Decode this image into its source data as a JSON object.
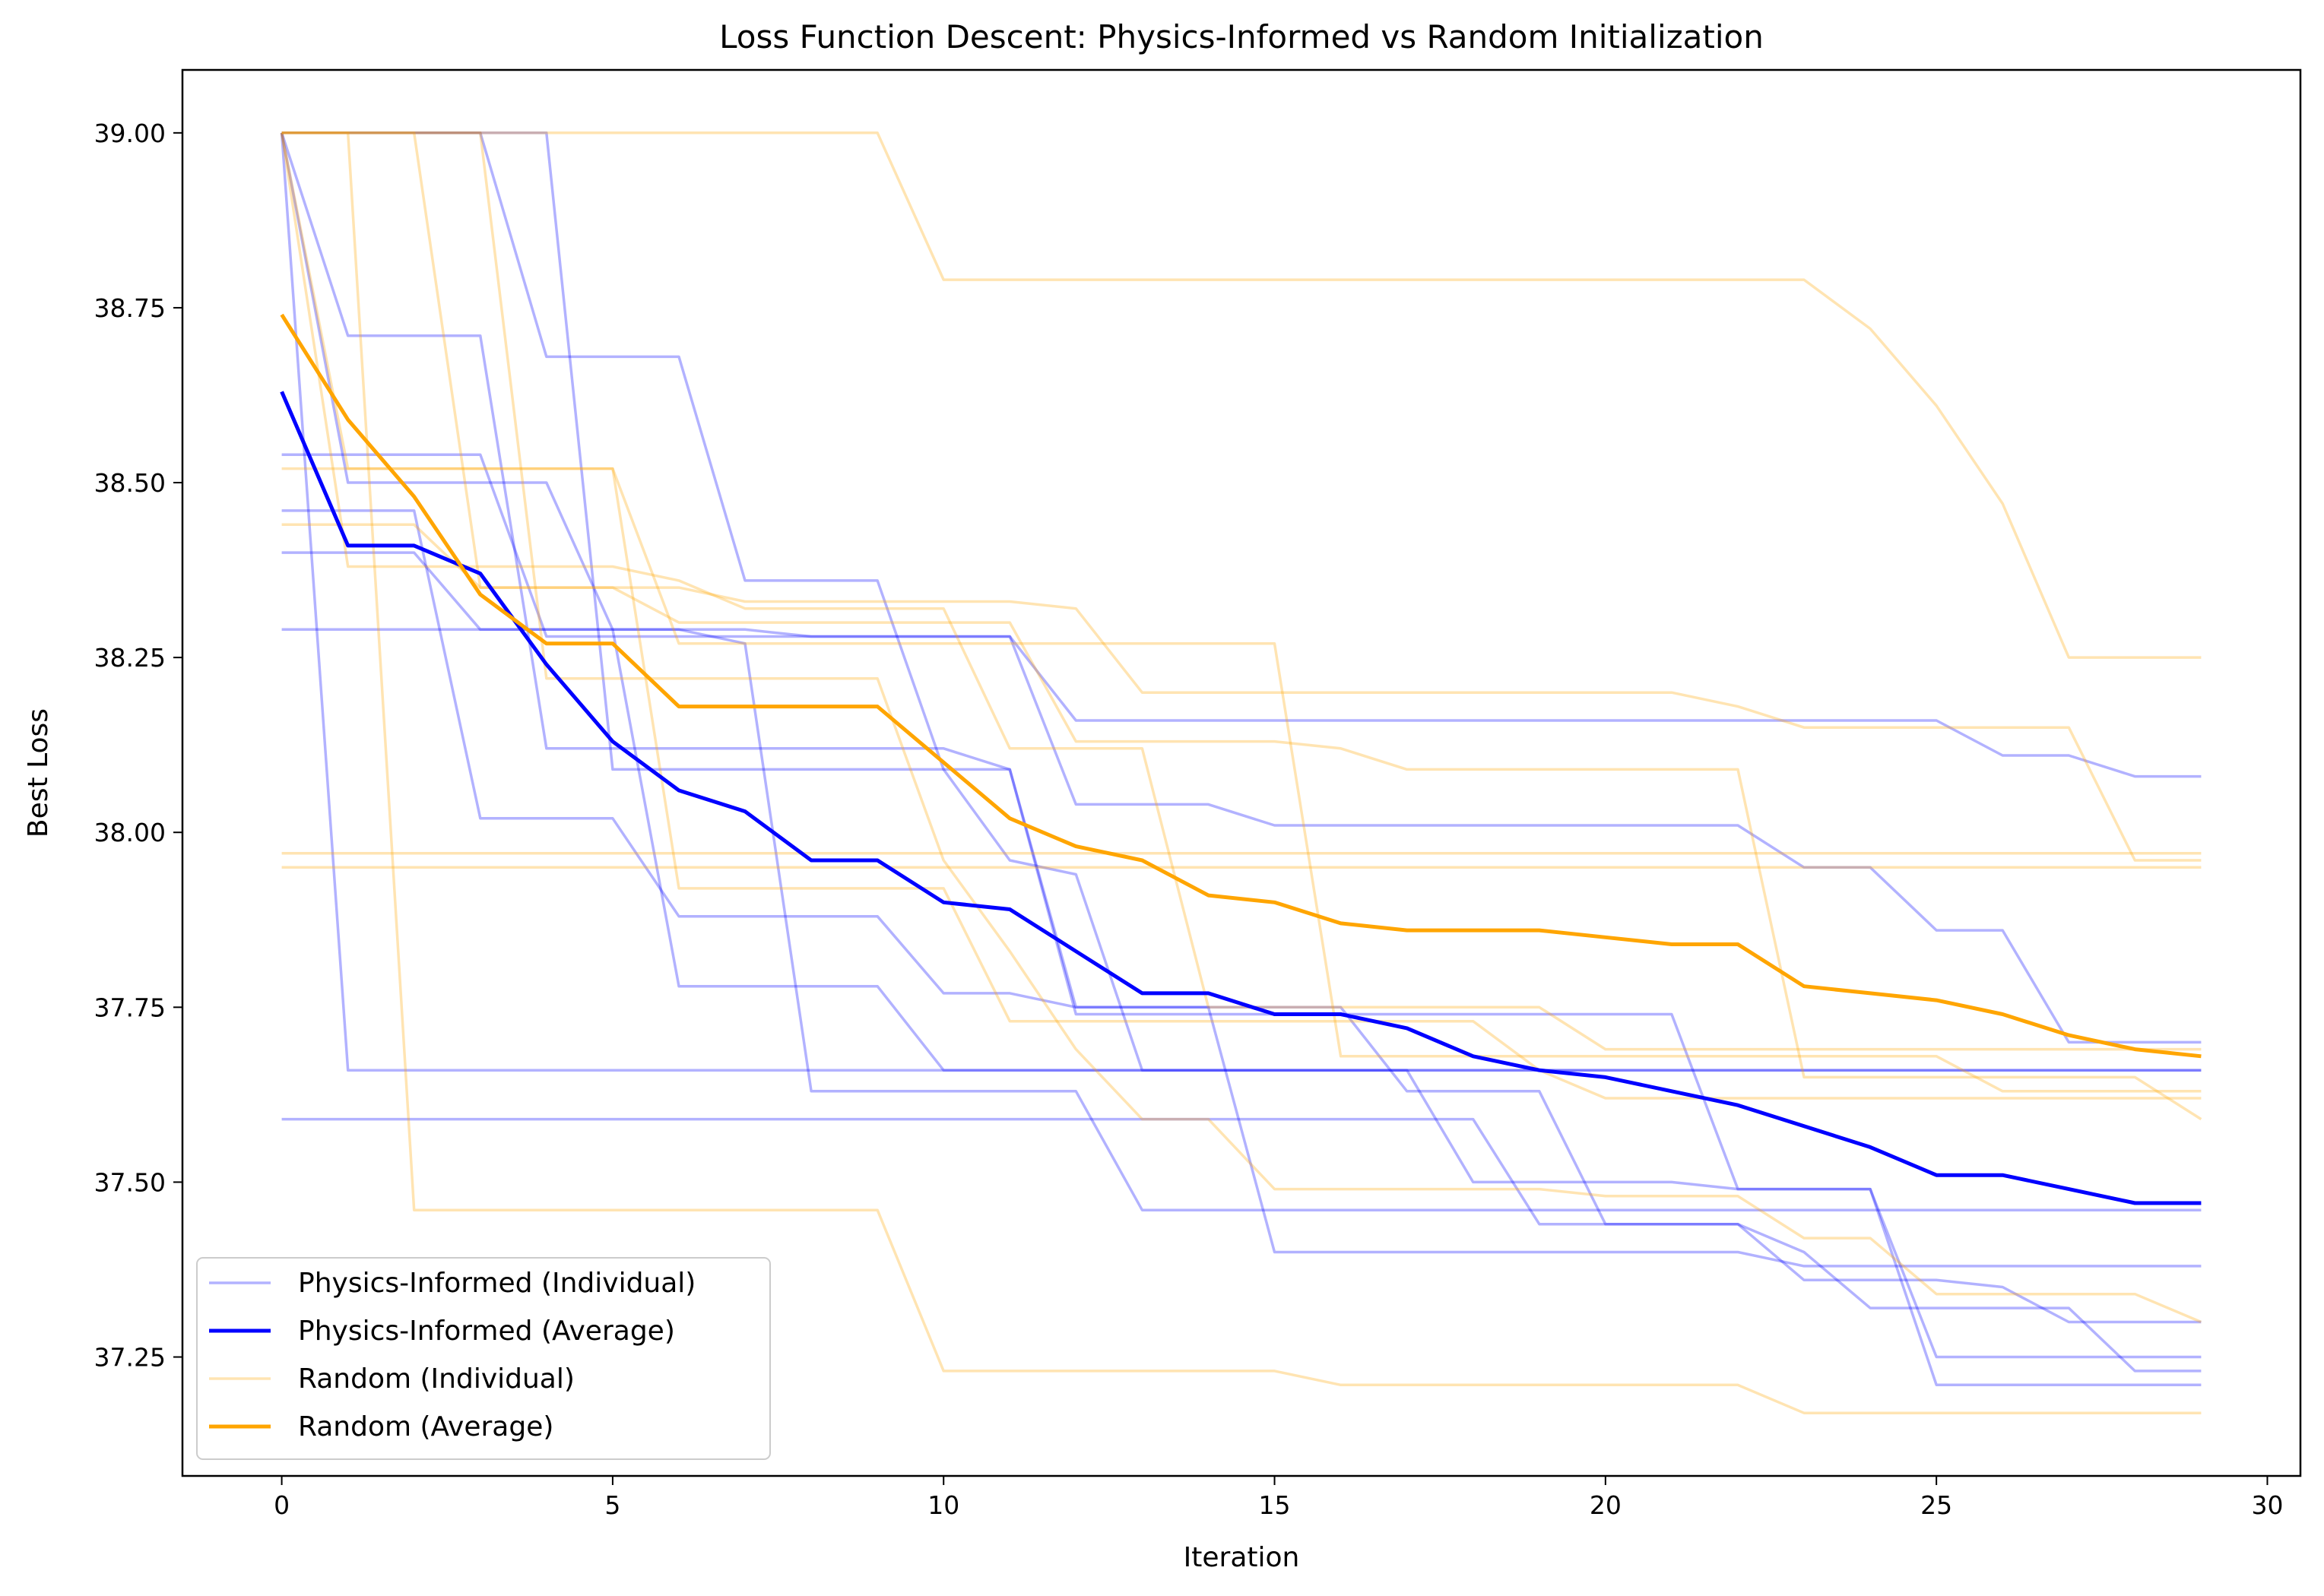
{
  "colors": {
    "physics": "#0000ff",
    "random": "#ffa500",
    "background": "#ffffff",
    "axes": "#000000"
  },
  "chart_data": {
    "type": "line",
    "title": "Loss Function Descent: Physics-Informed vs Random Initialization",
    "xlabel": "Iteration",
    "ylabel": "Best Loss",
    "xlim": [
      -1.5,
      30.5
    ],
    "ylim": [
      37.08,
      39.09
    ],
    "xticks": [
      0,
      5,
      10,
      15,
      20,
      25,
      30
    ],
    "yticks": [
      37.25,
      37.5,
      37.75,
      38.0,
      38.25,
      38.5,
      38.75,
      39.0
    ],
    "xtick_labels": [
      "0",
      "5",
      "10",
      "15",
      "20",
      "25",
      "30"
    ],
    "ytick_labels": [
      "37.25",
      "37.50",
      "37.75",
      "38.00",
      "38.25",
      "38.50",
      "38.75",
      "39.00"
    ],
    "grid": false,
    "legend_position": "lower-left",
    "legend": [
      {
        "label": "Physics-Informed (Individual)",
        "group": "physics",
        "style": "individual"
      },
      {
        "label": "Physics-Informed (Average)",
        "group": "physics",
        "style": "average"
      },
      {
        "label": "Random (Individual)",
        "group": "random",
        "style": "individual"
      },
      {
        "label": "Random (Average)",
        "group": "random",
        "style": "average"
      }
    ],
    "x": [
      0,
      1,
      2,
      3,
      4,
      5,
      6,
      7,
      8,
      9,
      10,
      11,
      12,
      13,
      14,
      15,
      16,
      17,
      18,
      19,
      20,
      21,
      22,
      23,
      24,
      25,
      26,
      27,
      28,
      29
    ],
    "series": [
      {
        "group": "physics",
        "style": "individual",
        "values": [
          39.0,
          38.71,
          38.71,
          38.71,
          38.12,
          38.12,
          38.12,
          38.12,
          38.12,
          38.12,
          38.12,
          38.09,
          37.75,
          37.75,
          37.75,
          37.75,
          37.75,
          37.63,
          37.63,
          37.63,
          37.44,
          37.44,
          37.44,
          37.36,
          37.36,
          37.36,
          37.35,
          37.3,
          37.3,
          37.3
        ]
      },
      {
        "group": "physics",
        "style": "individual",
        "values": [
          39.0,
          38.5,
          38.5,
          38.5,
          38.5,
          38.29,
          38.29,
          38.27,
          37.63,
          37.63,
          37.63,
          37.63,
          37.63,
          37.46,
          37.46,
          37.46,
          37.46,
          37.46,
          37.46,
          37.46,
          37.46,
          37.46,
          37.46,
          37.46,
          37.46,
          37.46,
          37.46,
          37.46,
          37.46,
          37.46
        ]
      },
      {
        "group": "physics",
        "style": "individual",
        "values": [
          39.0,
          37.66,
          37.66,
          37.66,
          37.66,
          37.66,
          37.66,
          37.66,
          37.66,
          37.66,
          37.66,
          37.66,
          37.66,
          37.66,
          37.66,
          37.66,
          37.66,
          37.66,
          37.66,
          37.66,
          37.66,
          37.66,
          37.66,
          37.66,
          37.66,
          37.66,
          37.66,
          37.66,
          37.66,
          37.66
        ]
      },
      {
        "group": "physics",
        "style": "individual",
        "values": [
          39.0,
          39.0,
          39.0,
          39.0,
          39.0,
          38.09,
          38.09,
          38.09,
          38.09,
          38.09,
          38.09,
          38.09,
          37.74,
          37.74,
          37.74,
          37.74,
          37.74,
          37.74,
          37.74,
          37.74,
          37.74,
          37.74,
          37.49,
          37.49,
          37.49,
          37.21,
          37.21,
          37.21,
          37.21,
          37.21
        ]
      },
      {
        "group": "physics",
        "style": "individual",
        "values": [
          38.54,
          38.54,
          38.54,
          38.54,
          38.28,
          38.28,
          38.28,
          38.28,
          38.28,
          38.28,
          38.28,
          38.28,
          38.16,
          38.16,
          38.16,
          38.16,
          38.16,
          38.16,
          38.16,
          38.16,
          38.16,
          38.16,
          38.16,
          38.16,
          38.16,
          38.16,
          38.11,
          38.11,
          38.08,
          38.08
        ]
      },
      {
        "group": "physics",
        "style": "individual",
        "values": [
          38.46,
          38.46,
          38.46,
          38.02,
          38.02,
          38.02,
          37.88,
          37.88,
          37.88,
          37.88,
          37.77,
          37.77,
          37.75,
          37.75,
          37.75,
          37.4,
          37.4,
          37.4,
          37.4,
          37.4,
          37.4,
          37.4,
          37.4,
          37.38,
          37.38,
          37.38,
          37.38,
          37.38,
          37.38,
          37.38
        ]
      },
      {
        "group": "physics",
        "style": "individual",
        "values": [
          38.4,
          38.4,
          38.4,
          38.29,
          38.29,
          38.29,
          37.78,
          37.78,
          37.78,
          37.78,
          37.66,
          37.66,
          37.66,
          37.66,
          37.66,
          37.66,
          37.66,
          37.66,
          37.5,
          37.5,
          37.5,
          37.5,
          37.49,
          37.49,
          37.49,
          37.25,
          37.25,
          37.25,
          37.25,
          37.25
        ]
      },
      {
        "group": "physics",
        "style": "individual",
        "values": [
          38.29,
          38.29,
          38.29,
          38.29,
          38.29,
          38.29,
          38.29,
          38.29,
          38.28,
          38.28,
          38.28,
          38.28,
          38.04,
          38.04,
          38.04,
          38.01,
          38.01,
          38.01,
          38.01,
          38.01,
          38.01,
          38.01,
          38.01,
          37.95,
          37.95,
          37.86,
          37.86,
          37.7,
          37.7,
          37.7
        ]
      },
      {
        "group": "physics",
        "style": "individual",
        "values": [
          39.0,
          39.0,
          39.0,
          39.0,
          38.68,
          38.68,
          38.68,
          38.36,
          38.36,
          38.36,
          38.09,
          37.96,
          37.94,
          37.66,
          37.66,
          37.66,
          37.66,
          37.66,
          37.66,
          37.66,
          37.66,
          37.66,
          37.66,
          37.66,
          37.66,
          37.66,
          37.66,
          37.66,
          37.66,
          37.66
        ]
      },
      {
        "group": "physics",
        "style": "individual",
        "values": [
          37.59,
          37.59,
          37.59,
          37.59,
          37.59,
          37.59,
          37.59,
          37.59,
          37.59,
          37.59,
          37.59,
          37.59,
          37.59,
          37.59,
          37.59,
          37.59,
          37.59,
          37.59,
          37.59,
          37.44,
          37.44,
          37.44,
          37.44,
          37.4,
          37.32,
          37.32,
          37.32,
          37.32,
          37.23,
          37.23
        ]
      },
      {
        "group": "physics",
        "style": "average",
        "values": [
          38.63,
          38.41,
          38.41,
          38.37,
          38.24,
          38.13,
          38.06,
          38.03,
          37.96,
          37.96,
          37.9,
          37.89,
          37.83,
          37.77,
          37.77,
          37.74,
          37.74,
          37.72,
          37.68,
          37.66,
          37.65,
          37.63,
          37.61,
          37.58,
          37.55,
          37.51,
          37.51,
          37.49,
          37.47,
          37.47
        ]
      },
      {
        "group": "random",
        "style": "individual",
        "values": [
          39.0,
          39.0,
          39.0,
          39.0,
          39.0,
          39.0,
          39.0,
          39.0,
          39.0,
          39.0,
          38.79,
          38.79,
          38.79,
          38.79,
          38.79,
          38.79,
          38.79,
          38.79,
          38.79,
          38.79,
          38.79,
          38.79,
          38.79,
          38.79,
          38.72,
          38.61,
          38.47,
          38.25,
          38.25,
          38.25
        ]
      },
      {
        "group": "random",
        "style": "individual",
        "values": [
          39.0,
          39.0,
          37.46,
          37.46,
          37.46,
          37.46,
          37.46,
          37.46,
          37.46,
          37.46,
          37.23,
          37.23,
          37.23,
          37.23,
          37.23,
          37.23,
          37.21,
          37.21,
          37.21,
          37.21,
          37.21,
          37.21,
          37.21,
          37.17,
          37.17,
          37.17,
          37.17,
          37.17,
          37.17,
          37.17
        ]
      },
      {
        "group": "random",
        "style": "individual",
        "values": [
          39.0,
          39.0,
          39.0,
          38.35,
          38.35,
          38.35,
          38.35,
          38.33,
          38.33,
          38.33,
          38.33,
          38.33,
          38.32,
          38.2,
          38.2,
          38.2,
          38.2,
          38.2,
          38.2,
          38.2,
          38.2,
          38.2,
          38.18,
          38.15,
          38.15,
          38.15,
          38.15,
          38.15,
          37.96,
          37.96
        ]
      },
      {
        "group": "random",
        "style": "individual",
        "values": [
          39.0,
          38.38,
          38.38,
          38.38,
          38.38,
          38.38,
          38.36,
          38.32,
          38.32,
          38.32,
          38.32,
          38.12,
          38.12,
          38.12,
          37.75,
          37.75,
          37.75,
          37.75,
          37.75,
          37.75,
          37.69,
          37.69,
          37.69,
          37.69,
          37.69,
          37.69,
          37.69,
          37.69,
          37.69,
          37.69
        ]
      },
      {
        "group": "random",
        "style": "individual",
        "values": [
          39.0,
          39.0,
          39.0,
          39.0,
          38.22,
          38.22,
          38.22,
          38.22,
          38.22,
          38.22,
          37.96,
          37.83,
          37.69,
          37.59,
          37.59,
          37.49,
          37.49,
          37.49,
          37.49,
          37.49,
          37.48,
          37.48,
          37.48,
          37.42,
          37.42,
          37.34,
          37.34,
          37.34,
          37.34,
          37.3
        ]
      },
      {
        "group": "random",
        "style": "individual",
        "values": [
          38.44,
          38.44,
          38.44,
          38.35,
          38.35,
          38.35,
          38.3,
          38.3,
          38.3,
          38.3,
          38.3,
          38.3,
          38.13,
          38.13,
          38.13,
          38.13,
          38.12,
          38.09,
          38.09,
          38.09,
          38.09,
          38.09,
          38.09,
          37.65,
          37.65,
          37.65,
          37.65,
          37.65,
          37.65,
          37.59
        ]
      },
      {
        "group": "random",
        "style": "individual",
        "values": [
          37.97,
          37.97,
          37.97,
          37.97,
          37.97,
          37.97,
          37.97,
          37.97,
          37.97,
          37.97,
          37.97,
          37.97,
          37.97,
          37.97,
          37.97,
          37.97,
          37.97,
          37.97,
          37.97,
          37.97,
          37.97,
          37.97,
          37.97,
          37.97,
          37.97,
          37.97,
          37.97,
          37.97,
          37.97,
          37.97
        ]
      },
      {
        "group": "random",
        "style": "individual",
        "values": [
          37.95,
          37.95,
          37.95,
          37.95,
          37.95,
          37.95,
          37.95,
          37.95,
          37.95,
          37.95,
          37.95,
          37.95,
          37.95,
          37.95,
          37.95,
          37.95,
          37.95,
          37.95,
          37.95,
          37.95,
          37.95,
          37.95,
          37.95,
          37.95,
          37.95,
          37.95,
          37.95,
          37.95,
          37.95,
          37.95
        ]
      },
      {
        "group": "random",
        "style": "individual",
        "values": [
          39.0,
          38.52,
          38.52,
          38.52,
          38.52,
          38.52,
          37.92,
          37.92,
          37.92,
          37.92,
          37.92,
          37.73,
          37.73,
          37.73,
          37.73,
          37.73,
          37.73,
          37.73,
          37.73,
          37.66,
          37.62,
          37.62,
          37.62,
          37.62,
          37.62,
          37.62,
          37.62,
          37.62,
          37.62,
          37.62
        ]
      },
      {
        "group": "random",
        "style": "individual",
        "values": [
          38.52,
          38.52,
          38.52,
          38.52,
          38.52,
          38.52,
          38.27,
          38.27,
          38.27,
          38.27,
          38.27,
          38.27,
          38.27,
          38.27,
          38.27,
          38.27,
          37.68,
          37.68,
          37.68,
          37.68,
          37.68,
          37.68,
          37.68,
          37.68,
          37.68,
          37.68,
          37.63,
          37.63,
          37.63,
          37.63
        ]
      },
      {
        "group": "random",
        "style": "average",
        "values": [
          38.74,
          38.59,
          38.48,
          38.34,
          38.27,
          38.27,
          38.18,
          38.18,
          38.18,
          38.18,
          38.1,
          38.02,
          37.98,
          37.96,
          37.91,
          37.9,
          37.87,
          37.86,
          37.86,
          37.86,
          37.85,
          37.84,
          37.84,
          37.78,
          37.77,
          37.76,
          37.74,
          37.71,
          37.69,
          37.68
        ]
      }
    ]
  }
}
